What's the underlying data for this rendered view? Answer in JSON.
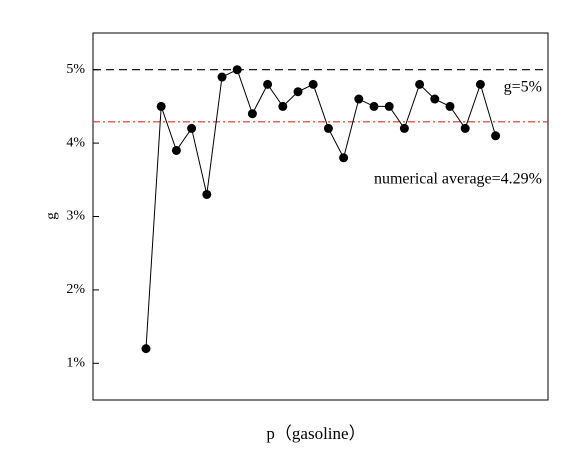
{
  "chart_data": {
    "type": "line",
    "xlabel": "p（gasoline）",
    "ylabel": "g",
    "categories": [
      null,
      null,
      null,
      null,
      null,
      null,
      null,
      null,
      null,
      null,
      null,
      null,
      null,
      null,
      null,
      null,
      null,
      null,
      null,
      null,
      null,
      null,
      null,
      null
    ],
    "series": [
      {
        "color": "#000000",
        "values": [
          1.2,
          4.5,
          3.9,
          4.2,
          3.3,
          4.9,
          5.0,
          4.4,
          4.8,
          4.5,
          4.7,
          4.8,
          4.2,
          3.8,
          4.6,
          4.5,
          4.5,
          4.2,
          4.8,
          4.6,
          4.5,
          4.2,
          4.8,
          4.1
        ]
      }
    ],
    "ylim": [
      0.5,
      5.5
    ],
    "yticks": [
      {
        "value": 1,
        "label": "1%"
      },
      {
        "value": 2,
        "label": "2%"
      },
      {
        "value": 3,
        "label": "3%"
      },
      {
        "value": 4,
        "label": "4%"
      },
      {
        "value": 5,
        "label": "5%"
      }
    ],
    "hlines": [
      {
        "value": 5,
        "label": "g=5%",
        "color": "#000000",
        "dash": "8,5"
      },
      {
        "value": 4.29,
        "label": "numerical average=4.29%",
        "color": "#e0302a",
        "dash": "7,3,2,3"
      }
    ]
  }
}
